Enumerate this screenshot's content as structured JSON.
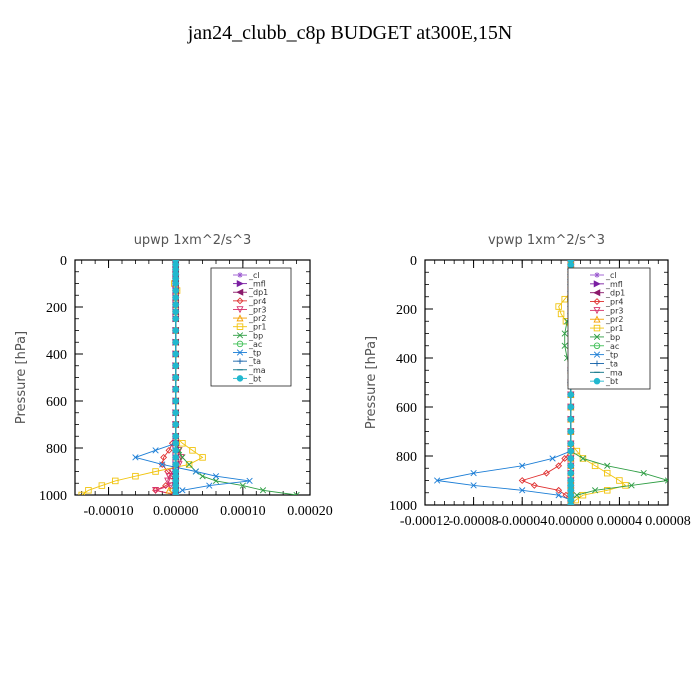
{
  "page": {
    "title": "jan24_clubb_c8p  BUDGET at300E,15N"
  },
  "chart_data": [
    {
      "type": "line",
      "title": "upwp   1xm^2/s^3",
      "ylabel": "Pressure [hPa]",
      "xlabel": "",
      "xlim": [
        -0.00015,
        0.0002
      ],
      "ylim": [
        1000,
        0
      ],
      "xticks": [
        -0.0001,
        0.0,
        0.0001,
        0.0002
      ],
      "xtick_labels": [
        "-0.00010",
        "0.00000",
        "0.00010",
        "0.00020"
      ],
      "yticks": [
        0,
        200,
        400,
        600,
        800,
        1000
      ],
      "ytick_labels": [
        "0",
        "200",
        "400",
        "600",
        "800",
        "1000"
      ],
      "legend_position": "top-right",
      "pressure_levels": [
        0,
        20,
        40,
        60,
        80,
        100,
        130,
        160,
        190,
        220,
        250,
        300,
        350,
        400,
        450,
        500,
        550,
        600,
        650,
        700,
        750,
        780,
        810,
        840,
        870,
        900,
        920,
        940,
        960,
        980,
        1000
      ],
      "series": [
        {
          "name": "_cl",
          "color": "#9b59d0",
          "marker": "*",
          "values": [
            0,
            0,
            0,
            0,
            0,
            0,
            0,
            0,
            0,
            0,
            0,
            0,
            0,
            0,
            0,
            0,
            0,
            0,
            0,
            0,
            0,
            0,
            0,
            0,
            0,
            0,
            0,
            0,
            0,
            0,
            0
          ]
        },
        {
          "name": "_mfl",
          "color": "#7a1fa2",
          "marker": "tri-r",
          "values": [
            0,
            0,
            0,
            0,
            0,
            0,
            0,
            0,
            0,
            0,
            0,
            0,
            0,
            0,
            0,
            0,
            0,
            0,
            0,
            0,
            0,
            0,
            0,
            0,
            0,
            0,
            0,
            0,
            0,
            0,
            0
          ]
        },
        {
          "name": "_dp1",
          "color": "#8b1a6b",
          "marker": "tri-l",
          "values": [
            0,
            0,
            0,
            0,
            0,
            0,
            0,
            0,
            0,
            0,
            0,
            0,
            0,
            0,
            0,
            0,
            0,
            0,
            0,
            0,
            0,
            0,
            0,
            0,
            0,
            0,
            0,
            0,
            0,
            0,
            0
          ]
        },
        {
          "name": "_pr4",
          "color": "#e03131",
          "marker": "diamond",
          "values": [
            0,
            0,
            0,
            0,
            0,
            0,
            0,
            0,
            0,
            0,
            0,
            0,
            0,
            0,
            0,
            0,
            0,
            0,
            0,
            0,
            0,
            -5e-06,
            -1e-05,
            -1.8e-05,
            -2e-05,
            -1.2e-05,
            -6e-06,
            0,
            -1.5e-05,
            -3e-05,
            0
          ]
        },
        {
          "name": "_pr3",
          "color": "#d6336c",
          "marker": "tri-d",
          "values": [
            0,
            0,
            0,
            0,
            0,
            0,
            0,
            0,
            0,
            0,
            0,
            0,
            0,
            0,
            0,
            0,
            0,
            0,
            0,
            0,
            0,
            0,
            5e-06,
            8e-06,
            5e-06,
            -5e-06,
            -1e-05,
            -1.2e-05,
            -8e-06,
            -3e-05,
            0
          ]
        },
        {
          "name": "_pr2",
          "color": "#f59f00",
          "marker": "tri-u",
          "values": [
            0,
            0,
            0,
            0,
            0,
            0,
            0,
            0,
            0,
            0,
            0,
            0,
            0,
            0,
            0,
            0,
            0,
            0,
            0,
            0,
            0,
            0,
            0,
            0,
            0,
            0,
            0,
            0,
            0,
            -1e-05,
            0
          ]
        },
        {
          "name": "_pr1",
          "color": "#f1c40f",
          "marker": "square",
          "values": [
            0,
            0,
            0,
            0,
            0,
            -2e-06,
            2e-06,
            0,
            0,
            0,
            0,
            0,
            0,
            0,
            0,
            0,
            0,
            0,
            0,
            0,
            0,
            1e-05,
            2.5e-05,
            4e-05,
            2e-05,
            -3e-05,
            -6e-05,
            -9e-05,
            -0.00011,
            -0.00013,
            -0.00014
          ]
        },
        {
          "name": "_bp",
          "color": "#2f9e44",
          "marker": "x",
          "values": [
            0,
            0,
            0,
            0,
            0,
            0,
            0,
            0,
            0,
            0,
            0,
            0,
            0,
            0,
            0,
            0,
            0,
            0,
            0,
            0,
            0,
            0,
            5e-06,
            1e-05,
            2e-05,
            3e-05,
            4e-05,
            6e-05,
            0.0001,
            0.00013,
            0.00018
          ]
        },
        {
          "name": "_ac",
          "color": "#40c057",
          "marker": "circle",
          "values": [
            0,
            0,
            0,
            0,
            0,
            0,
            0,
            0,
            0,
            0,
            0,
            0,
            0,
            0,
            0,
            0,
            0,
            0,
            0,
            0,
            0,
            0,
            0,
            0,
            0,
            0,
            0,
            0,
            0,
            0,
            0
          ]
        },
        {
          "name": "_tp",
          "color": "#1c7ed6",
          "marker": "x",
          "values": [
            0,
            0,
            0,
            0,
            0,
            0,
            0,
            0,
            0,
            0,
            0,
            0,
            0,
            0,
            0,
            0,
            0,
            0,
            0,
            0,
            0,
            0,
            -3e-05,
            -6e-05,
            -2e-05,
            3e-05,
            6e-05,
            0.00011,
            5e-05,
            1e-05,
            0
          ]
        },
        {
          "name": "_ta",
          "color": "#1864ab",
          "marker": "plus",
          "values": [
            0,
            0,
            0,
            0,
            0,
            0,
            0,
            0,
            0,
            0,
            0,
            0,
            0,
            0,
            0,
            0,
            0,
            0,
            0,
            0,
            0,
            0,
            0,
            0,
            0,
            0,
            0,
            0,
            0,
            0,
            0
          ]
        },
        {
          "name": "_ma",
          "color": "#0b7285",
          "marker": "dash",
          "values": [
            0,
            0,
            0,
            0,
            0,
            0,
            0,
            0,
            0,
            0,
            0,
            0,
            0,
            0,
            0,
            0,
            0,
            0,
            0,
            0,
            0,
            0,
            0,
            0,
            0,
            0,
            0,
            0,
            0,
            0,
            0
          ]
        },
        {
          "name": "_bt",
          "color": "#22b8cf",
          "marker": "dot",
          "values": [
            0,
            0,
            0,
            0,
            0,
            0,
            0,
            0,
            0,
            0,
            0,
            0,
            0,
            0,
            0,
            0,
            0,
            0,
            0,
            0,
            0,
            0,
            0,
            0,
            0,
            0,
            0,
            0,
            0,
            0,
            0
          ]
        }
      ]
    },
    {
      "type": "line",
      "title": "vpwp   1xm^2/s^3",
      "ylabel": "Pressure [hPa]",
      "xlabel": "",
      "xlim": [
        -0.00012,
        8e-05
      ],
      "ylim": [
        1000,
        0
      ],
      "xticks": [
        -0.00012,
        -8e-05,
        -4e-05,
        0.0,
        4e-05,
        8e-05
      ],
      "xtick_labels": [
        "-0.00012",
        "-0.00008",
        "-0.00004",
        "0.00000",
        "0.00004",
        "0.00008"
      ],
      "yticks": [
        0,
        200,
        400,
        600,
        800,
        1000
      ],
      "ytick_labels": [
        "0",
        "200",
        "400",
        "600",
        "800",
        "1000"
      ],
      "legend_position": "top-right",
      "pressure_levels": [
        0,
        20,
        40,
        60,
        80,
        100,
        130,
        160,
        190,
        220,
        250,
        300,
        350,
        400,
        450,
        500,
        550,
        600,
        650,
        700,
        750,
        780,
        810,
        840,
        870,
        900,
        920,
        940,
        960,
        980,
        1000
      ],
      "series": [
        {
          "name": "_cl",
          "color": "#9b59d0",
          "marker": "*",
          "values": [
            0,
            0,
            0,
            0,
            0,
            0,
            0,
            0,
            0,
            0,
            0,
            0,
            0,
            0,
            0,
            0,
            0,
            0,
            0,
            0,
            0,
            0,
            0,
            0,
            0,
            0,
            0,
            0,
            0,
            0,
            0
          ]
        },
        {
          "name": "_mfl",
          "color": "#7a1fa2",
          "marker": "tri-r",
          "values": [
            0,
            0,
            0,
            0,
            0,
            0,
            0,
            0,
            0,
            0,
            0,
            0,
            0,
            0,
            0,
            0,
            0,
            0,
            0,
            0,
            0,
            0,
            0,
            0,
            0,
            0,
            0,
            0,
            0,
            0,
            0
          ]
        },
        {
          "name": "_dp1",
          "color": "#8b1a6b",
          "marker": "tri-l",
          "values": [
            0,
            0,
            0,
            0,
            0,
            0,
            0,
            0,
            0,
            0,
            0,
            0,
            0,
            0,
            0,
            0,
            0,
            0,
            0,
            0,
            0,
            0,
            0,
            0,
            0,
            0,
            0,
            0,
            0,
            0,
            0
          ]
        },
        {
          "name": "_pr4",
          "color": "#e03131",
          "marker": "diamond",
          "values": [
            0,
            0,
            0,
            0,
            0,
            0,
            0,
            0,
            0,
            0,
            0,
            0,
            0,
            0,
            0,
            0,
            0,
            0,
            0,
            0,
            0,
            0,
            -5e-06,
            -1e-05,
            -2e-05,
            -4e-05,
            -3e-05,
            -1e-05,
            -4e-06,
            0,
            0
          ]
        },
        {
          "name": "_pr3",
          "color": "#d6336c",
          "marker": "tri-d",
          "values": [
            0,
            0,
            0,
            0,
            0,
            0,
            0,
            0,
            0,
            0,
            0,
            0,
            0,
            0,
            0,
            0,
            0,
            0,
            0,
            0,
            0,
            0,
            0,
            0,
            0,
            0,
            0,
            0,
            0,
            0,
            0
          ]
        },
        {
          "name": "_pr2",
          "color": "#f59f00",
          "marker": "tri-u",
          "values": [
            0,
            0,
            0,
            0,
            0,
            0,
            0,
            0,
            0,
            0,
            0,
            0,
            0,
            0,
            0,
            0,
            0,
            0,
            0,
            0,
            0,
            0,
            0,
            0,
            0,
            0,
            0,
            0,
            0,
            0,
            0
          ]
        },
        {
          "name": "_pr1",
          "color": "#f1c40f",
          "marker": "square",
          "values": [
            0,
            0,
            0,
            0,
            0,
            0,
            0,
            -5e-06,
            -1e-05,
            -8e-06,
            -4e-06,
            0,
            0,
            0,
            0,
            0,
            0,
            0,
            0,
            0,
            0,
            5e-06,
            1e-05,
            2e-05,
            3e-05,
            4e-05,
            4.5e-05,
            3e-05,
            1e-05,
            4e-06,
            0
          ]
        },
        {
          "name": "_bp",
          "color": "#2f9e44",
          "marker": "x",
          "values": [
            0,
            0,
            0,
            0,
            0,
            0,
            0,
            0,
            0,
            0,
            -3e-06,
            -5e-06,
            -5e-06,
            -3e-06,
            0,
            0,
            0,
            0,
            0,
            0,
            0,
            0,
            1e-05,
            3e-05,
            6e-05,
            8e-05,
            5e-05,
            2e-05,
            5e-06,
            0,
            0
          ]
        },
        {
          "name": "_ac",
          "color": "#40c057",
          "marker": "circle",
          "values": [
            0,
            0,
            0,
            0,
            0,
            0,
            0,
            0,
            0,
            0,
            0,
            0,
            0,
            0,
            0,
            0,
            0,
            0,
            0,
            0,
            0,
            0,
            0,
            0,
            0,
            0,
            0,
            0,
            0,
            0,
            0
          ]
        },
        {
          "name": "_tp",
          "color": "#1c7ed6",
          "marker": "x",
          "values": [
            0,
            0,
            0,
            0,
            0,
            0,
            0,
            4e-06,
            8e-06,
            5e-06,
            0,
            0,
            0,
            0,
            0,
            0,
            0,
            0,
            0,
            0,
            0,
            0,
            -1.5e-05,
            -4e-05,
            -8e-05,
            -0.00011,
            -8e-05,
            -4e-05,
            -1e-05,
            0,
            0
          ]
        },
        {
          "name": "_ta",
          "color": "#1864ab",
          "marker": "plus",
          "values": [
            0,
            0,
            0,
            0,
            0,
            0,
            0,
            0,
            0,
            0,
            0,
            0,
            0,
            0,
            0,
            0,
            0,
            0,
            0,
            0,
            0,
            0,
            0,
            0,
            0,
            0,
            0,
            0,
            0,
            0,
            0
          ]
        },
        {
          "name": "_ma",
          "color": "#0b7285",
          "marker": "dash",
          "values": [
            0,
            0,
            0,
            0,
            0,
            0,
            0,
            0,
            0,
            0,
            0,
            0,
            0,
            0,
            0,
            0,
            0,
            0,
            0,
            0,
            0,
            0,
            0,
            0,
            0,
            0,
            0,
            0,
            0,
            0,
            0
          ]
        },
        {
          "name": "_bt",
          "color": "#22b8cf",
          "marker": "dot",
          "values": [
            0,
            0,
            0,
            0,
            0,
            0,
            0,
            0,
            0,
            0,
            0,
            0,
            0,
            0,
            0,
            0,
            0,
            0,
            0,
            0,
            0,
            0,
            0,
            0,
            0,
            0,
            0,
            0,
            0,
            0,
            0
          ]
        }
      ]
    }
  ]
}
